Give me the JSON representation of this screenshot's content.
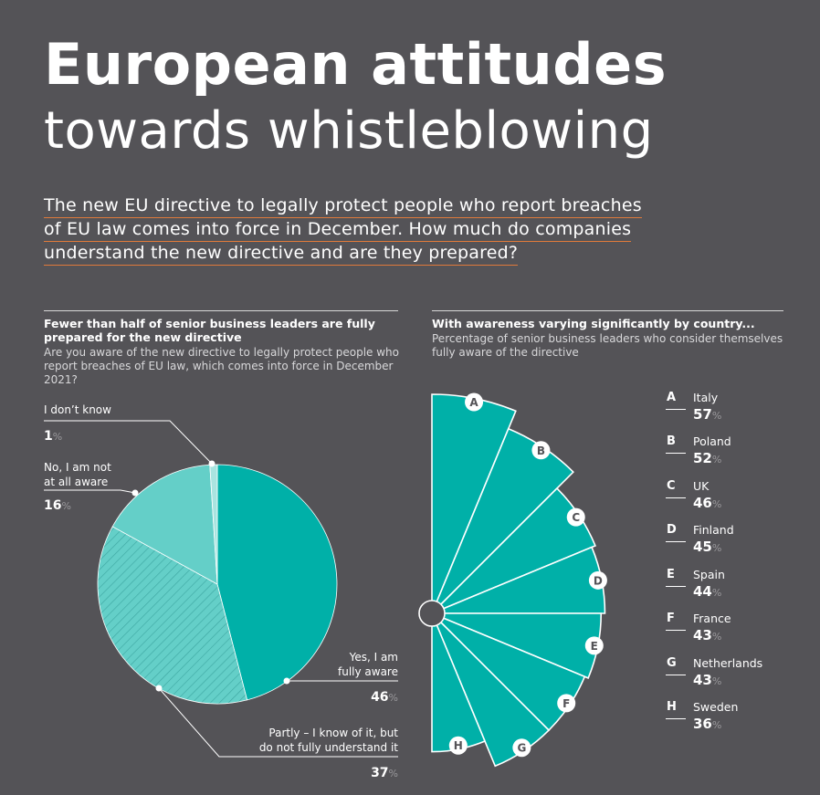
{
  "title": {
    "line1": "European attitudes",
    "line2": "towards whistleblowing"
  },
  "intro": [
    "The new EU directive to legally protect people who report breaches",
    "of EU law comes into force in December. How much do companies",
    "understand the new directive and are they prepared?"
  ],
  "colors": {
    "background": "#545357",
    "teal": "#00b0a8",
    "teal_light": "#64cfc8",
    "teal_pale": "#a9e4e0",
    "accent_underline": "#e07a3b"
  },
  "chart_data": [
    {
      "type": "pie",
      "title": "Fewer than half of senior business leaders are fully prepared for the new directive",
      "subtitle": "Are you aware of the new directive to legally protect people who report breaches of EU law, which comes into force in December 2021?",
      "unit": "%",
      "slices": [
        {
          "label": "Yes, I am fully aware",
          "value": 46,
          "color": "#00b0a8",
          "pattern": "solid"
        },
        {
          "label": "Partly – I know of it, but do not fully understand it",
          "value": 37,
          "color": "#64cfc8",
          "pattern": "hatched"
        },
        {
          "label": "No, I am not at all aware",
          "value": 16,
          "color": "#64cfc8",
          "pattern": "solid"
        },
        {
          "label": "I don’t know",
          "value": 1,
          "color": "#a9e4e0",
          "pattern": "solid"
        }
      ]
    },
    {
      "type": "bar",
      "style": "radial half-circle (semicircular wedges sized by value)",
      "title": "With awareness varying significantly by country...",
      "subtitle": "Percentage of senior business leaders who consider themselves fully aware of the directive",
      "unit": "%",
      "color": "#00b0a8",
      "categories": [
        "Italy",
        "Poland",
        "UK",
        "Finland",
        "Spain",
        "France",
        "Netherlands",
        "Sweden"
      ],
      "letters": [
        "A",
        "B",
        "C",
        "D",
        "E",
        "F",
        "G",
        "H"
      ],
      "values": [
        57,
        52,
        46,
        45,
        44,
        43,
        43,
        36
      ]
    }
  ],
  "pie_labels": {
    "dont_know": {
      "line1": "I don’t know",
      "value": "1"
    },
    "not_aware": {
      "line1": "No, I am not",
      "line2": "at all aware",
      "value": "16"
    },
    "fully": {
      "line1": "Yes, I am",
      "line2": "fully aware",
      "value": "46"
    },
    "partly": {
      "line1": "Partly – I know of it, but",
      "line2": "do not fully understand it",
      "value": "37"
    },
    "pct": "%"
  },
  "left_section": {
    "heading_line1": "Fewer than half of senior business leaders are fully",
    "heading_line2": "prepared for the new directive",
    "sub_line1": "Are you aware of the new directive to legally protect people who",
    "sub_line2": "report breaches of EU law, which comes into force in December",
    "sub_line3": "2021?"
  },
  "right_section": {
    "heading": "With awareness varying significantly by country...",
    "sub_line1": "Percentage of senior business leaders who consider themselves",
    "sub_line2": "fully aware of the directive"
  },
  "legend": [
    {
      "letter": "A",
      "country": "Italy",
      "value": "57"
    },
    {
      "letter": "B",
      "country": "Poland",
      "value": "52"
    },
    {
      "letter": "C",
      "country": "UK",
      "value": "46"
    },
    {
      "letter": "D",
      "country": "Finland",
      "value": "45"
    },
    {
      "letter": "E",
      "country": "Spain",
      "value": "44"
    },
    {
      "letter": "F",
      "country": "France",
      "value": "43"
    },
    {
      "letter": "G",
      "country": "Netherlands",
      "value": "43"
    },
    {
      "letter": "H",
      "country": "Sweden",
      "value": "36"
    }
  ]
}
